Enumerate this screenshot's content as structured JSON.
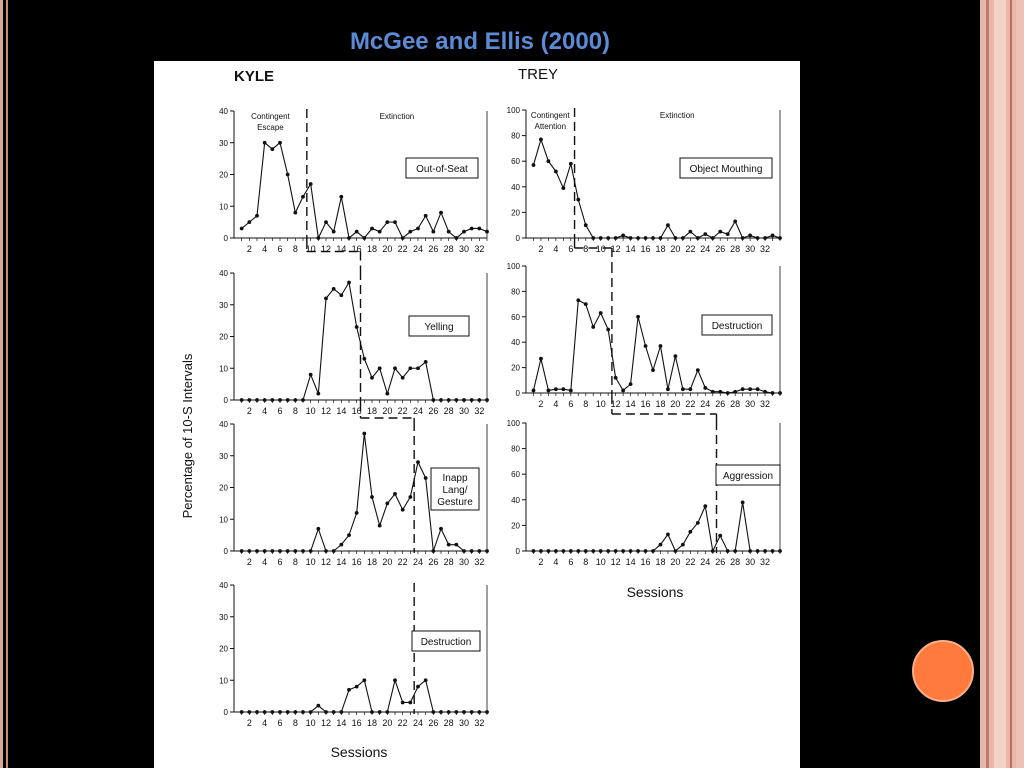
{
  "slide": {
    "title": "McGee and Ellis (2000)"
  },
  "figure": {
    "ylabel": "Percentage of 10-S Intervals",
    "xlabel": "Sessions"
  },
  "chart_data": [
    {
      "type": "line",
      "column": "KYLE",
      "subject_label": "KYLE",
      "title": "Out-of-Seat",
      "xlim": [
        0,
        33
      ],
      "ylim": [
        0,
        40
      ],
      "yticks": [
        0,
        10,
        20,
        30,
        40
      ],
      "xticks": [
        2,
        4,
        6,
        8,
        10,
        12,
        14,
        16,
        18,
        20,
        22,
        24,
        26,
        28,
        30,
        32
      ],
      "phase_labels": [
        "Contingent\nEscape",
        "Extinction"
      ],
      "phase_change_x": 9.5,
      "x": [
        1,
        2,
        3,
        4,
        5,
        6,
        7,
        8,
        9,
        10,
        11,
        12,
        13,
        14,
        15,
        16,
        17,
        18,
        19,
        20,
        21,
        22,
        23,
        24,
        25,
        26,
        27,
        28,
        29,
        30,
        31,
        32,
        33
      ],
      "values": [
        3,
        5,
        7,
        30,
        28,
        30,
        20,
        8,
        13,
        17,
        0,
        5,
        2,
        13,
        0,
        2,
        0,
        3,
        2,
        5,
        5,
        0,
        2,
        3,
        7,
        2,
        8,
        2,
        0,
        2,
        3,
        3,
        2
      ]
    },
    {
      "type": "line",
      "column": "KYLE",
      "title": "Yelling",
      "xlim": [
        0,
        33
      ],
      "ylim": [
        0,
        40
      ],
      "yticks": [
        0,
        10,
        20,
        30,
        40
      ],
      "xticks": [
        2,
        4,
        6,
        8,
        10,
        12,
        14,
        16,
        18,
        20,
        22,
        24,
        26,
        28,
        30,
        32
      ],
      "phase_change_x": 16.5,
      "x": [
        1,
        2,
        3,
        4,
        5,
        6,
        7,
        8,
        9,
        10,
        11,
        12,
        13,
        14,
        15,
        16,
        17,
        18,
        19,
        20,
        21,
        22,
        23,
        24,
        25,
        26,
        27,
        28,
        29,
        30,
        31,
        32,
        33
      ],
      "values": [
        0,
        0,
        0,
        0,
        0,
        0,
        0,
        0,
        0,
        8,
        2,
        32,
        35,
        33,
        37,
        23,
        13,
        7,
        10,
        2,
        10,
        7,
        10,
        10,
        12,
        0,
        0,
        0,
        0,
        0,
        0,
        0,
        0
      ]
    },
    {
      "type": "line",
      "column": "KYLE",
      "title": "Inapp\nLang/\nGesture",
      "xlim": [
        0,
        33
      ],
      "ylim": [
        0,
        40
      ],
      "yticks": [
        0,
        10,
        20,
        30,
        40
      ],
      "xticks": [
        2,
        4,
        6,
        8,
        10,
        12,
        14,
        16,
        18,
        20,
        22,
        24,
        26,
        28,
        30,
        32
      ],
      "phase_change_x": 23.5,
      "x": [
        1,
        2,
        3,
        4,
        5,
        6,
        7,
        8,
        9,
        10,
        11,
        12,
        13,
        14,
        15,
        16,
        17,
        18,
        19,
        20,
        21,
        22,
        23,
        24,
        25,
        26,
        27,
        28,
        29,
        30,
        31,
        32,
        33
      ],
      "values": [
        0,
        0,
        0,
        0,
        0,
        0,
        0,
        0,
        0,
        0,
        7,
        0,
        0,
        2,
        5,
        12,
        37,
        17,
        8,
        15,
        18,
        13,
        17,
        28,
        23,
        0,
        7,
        2,
        2,
        0,
        0,
        0,
        0
      ]
    },
    {
      "type": "line",
      "column": "KYLE",
      "title": "Destruction",
      "xlim": [
        0,
        33
      ],
      "ylim": [
        0,
        40
      ],
      "yticks": [
        0,
        10,
        20,
        30,
        40
      ],
      "xticks": [
        2,
        4,
        6,
        8,
        10,
        12,
        14,
        16,
        18,
        20,
        22,
        24,
        26,
        28,
        30,
        32
      ],
      "phase_change_x": 23.5,
      "x": [
        1,
        2,
        3,
        4,
        5,
        6,
        7,
        8,
        9,
        10,
        11,
        12,
        13,
        14,
        15,
        16,
        17,
        18,
        19,
        20,
        21,
        22,
        23,
        24,
        25,
        26,
        27,
        28,
        29,
        30,
        31,
        32,
        33
      ],
      "values": [
        0,
        0,
        0,
        0,
        0,
        0,
        0,
        0,
        0,
        0,
        2,
        0,
        0,
        0,
        7,
        8,
        10,
        0,
        0,
        0,
        10,
        3,
        3,
        8,
        10,
        0,
        0,
        0,
        0,
        0,
        0,
        0,
        0
      ]
    },
    {
      "type": "line",
      "column": "TREY",
      "subject_label": "TREY",
      "title": "Object Mouthing",
      "xlim": [
        0,
        34
      ],
      "ylim": [
        0,
        100
      ],
      "yticks": [
        0,
        20,
        40,
        60,
        80,
        100
      ],
      "xticks": [
        2,
        4,
        6,
        8,
        10,
        12,
        14,
        16,
        18,
        20,
        22,
        24,
        26,
        28,
        30,
        32
      ],
      "phase_labels": [
        "Contingent\nAttention",
        "Extinction"
      ],
      "phase_change_x": 6.5,
      "x": [
        1,
        2,
        3,
        4,
        5,
        6,
        7,
        8,
        9,
        10,
        11,
        12,
        13,
        14,
        15,
        16,
        17,
        18,
        19,
        20,
        21,
        22,
        23,
        24,
        25,
        26,
        27,
        28,
        29,
        30,
        31,
        32,
        33,
        34
      ],
      "values": [
        57,
        77,
        60,
        52,
        39,
        58,
        30,
        10,
        0,
        0,
        0,
        0,
        2,
        0,
        0,
        0,
        0,
        0,
        10,
        0,
        0,
        5,
        0,
        3,
        0,
        5,
        3,
        13,
        0,
        2,
        0,
        0,
        2,
        0
      ]
    },
    {
      "type": "line",
      "column": "TREY",
      "title": "Destruction",
      "xlim": [
        0,
        34
      ],
      "ylim": [
        0,
        100
      ],
      "yticks": [
        0,
        20,
        40,
        60,
        80,
        100
      ],
      "xticks": [
        2,
        4,
        6,
        8,
        10,
        12,
        14,
        16,
        18,
        20,
        22,
        24,
        26,
        28,
        30,
        32
      ],
      "phase_change_x": 11.5,
      "x": [
        1,
        2,
        3,
        4,
        5,
        6,
        7,
        8,
        9,
        10,
        11,
        12,
        13,
        14,
        15,
        16,
        17,
        18,
        19,
        20,
        21,
        22,
        23,
        24,
        25,
        26,
        27,
        28,
        29,
        30,
        31,
        32,
        33,
        34
      ],
      "values": [
        2,
        27,
        2,
        3,
        3,
        2,
        73,
        70,
        52,
        63,
        50,
        12,
        2,
        7,
        60,
        37,
        18,
        37,
        3,
        29,
        3,
        3,
        18,
        4,
        1,
        1,
        0,
        1,
        3,
        3,
        3,
        1,
        0,
        0
      ]
    },
    {
      "type": "line",
      "column": "TREY",
      "title": "Aggression",
      "xlim": [
        0,
        34
      ],
      "ylim": [
        0,
        100
      ],
      "yticks": [
        0,
        20,
        40,
        60,
        80,
        100
      ],
      "xticks": [
        2,
        4,
        6,
        8,
        10,
        12,
        14,
        16,
        18,
        20,
        22,
        24,
        26,
        28,
        30,
        32
      ],
      "phase_change_x": 25.5,
      "x": [
        1,
        2,
        3,
        4,
        5,
        6,
        7,
        8,
        9,
        10,
        11,
        12,
        13,
        14,
        15,
        16,
        17,
        18,
        19,
        20,
        21,
        22,
        23,
        24,
        25,
        26,
        27,
        28,
        29,
        30,
        31,
        32,
        33,
        34
      ],
      "values": [
        0,
        0,
        0,
        0,
        0,
        0,
        0,
        0,
        0,
        0,
        0,
        0,
        0,
        0,
        0,
        0,
        0,
        5,
        13,
        0,
        5,
        15,
        22,
        35,
        0,
        12,
        0,
        0,
        38,
        0,
        0,
        0,
        0,
        0
      ]
    }
  ]
}
